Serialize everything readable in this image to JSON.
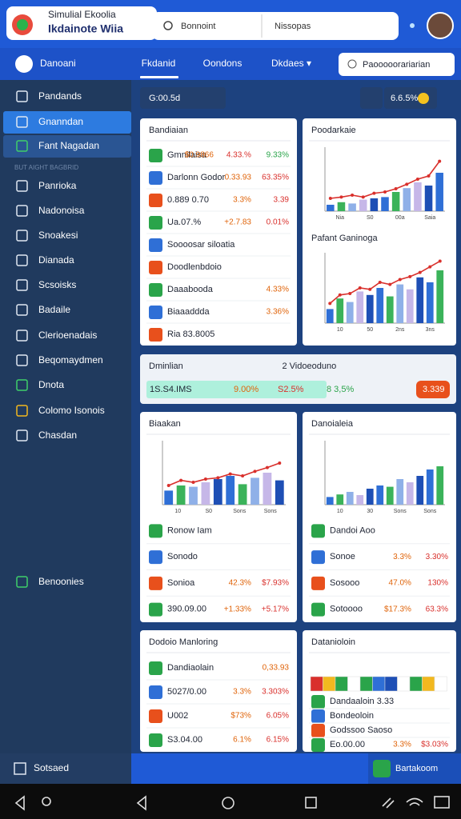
{
  "header": {
    "logo_line1": "Simulial Ekoolia",
    "logo_line2": "Ikdainote Wiia",
    "search": "Bonnoint",
    "search_filter": "Nissopas"
  },
  "nav": {
    "brand": "Danoani",
    "tabs": [
      "Fkdanid",
      "Oondons",
      "Dkdaes ▾"
    ],
    "button": "Paooooorariarian"
  },
  "sidebar": {
    "items": [
      "Pandands",
      "Gnanndan",
      "Fant Nagadan",
      "Panrioka",
      "Nadonoisa",
      "Snoakesi",
      "Dianada",
      "Scsoisks",
      "Badaile",
      "Clerioenadais",
      "Beqomaydmen",
      "Dnota",
      "Colomo Isonois",
      "Chasdan"
    ],
    "section": "BUT AIGHT BAGBRID",
    "footer_item": "Benoonies"
  },
  "toolbar": {
    "left": "G:00.5d",
    "right": "6.6.5%"
  },
  "cards": [
    {
      "title": "Bandiaian",
      "rows": [
        [
          "Gmnilaisa",
          "$0.9866",
          "4.33.%",
          "9.33%"
        ],
        [
          "Darlonn Godor",
          "0.33.93",
          "63.35%"
        ],
        [
          "0.889 0.70",
          "3.3%",
          "3.39"
        ],
        [
          "Ua.07.%",
          "+2.7.83",
          "0.01%"
        ],
        [
          "Soooosar siloatia"
        ],
        [
          "Doodlenbdoio"
        ],
        [
          "Daaabooda",
          "4.33%"
        ],
        [
          "Biaaaddda",
          "3.36%"
        ],
        [
          "Ria 83.8005"
        ]
      ]
    },
    {
      "title": "Poodarkaie",
      "chart": {
        "bars": [
          10,
          14,
          12,
          18,
          20,
          22,
          30,
          36,
          45,
          40,
          60
        ],
        "line": [
          20,
          22,
          25,
          22,
          28,
          30,
          35,
          42,
          50,
          55,
          78
        ],
        "ylim": [
          0,
          100
        ],
        "x_labels": [
          "Nia",
          "S0",
          "00a",
          "Saia"
        ]
      },
      "subtitle": "Pafant Ganinoga",
      "chart2": {
        "bars": [
          20,
          35,
          30,
          45,
          40,
          50,
          38,
          55,
          48,
          65,
          58,
          75
        ],
        "line": [
          28,
          40,
          42,
          50,
          48,
          58,
          55,
          62,
          66,
          72,
          80,
          88
        ],
        "ylim": [
          0,
          100
        ],
        "x_labels": [
          "10",
          "50",
          "2ns",
          "3ns"
        ]
      }
    },
    {
      "title": "Dminlian",
      "title2": "2 Vidoeoduno",
      "rows": [
        [
          "1S.S4.IMS",
          "9.00%",
          "S2.5%",
          "8 3,5%",
          "3.339"
        ]
      ]
    },
    {
      "title": "Biaakan",
      "chart": {
        "bars": [
          22,
          30,
          28,
          35,
          40,
          45,
          32,
          42,
          50,
          38
        ],
        "line": [
          30,
          38,
          35,
          40,
          42,
          48,
          45,
          52,
          58,
          65
        ],
        "ylim": [
          0,
          100
        ],
        "x_labels": [
          "10",
          "S0",
          "Sons",
          "Sons"
        ]
      },
      "rows": [
        [
          "Ronow Iam"
        ],
        [
          "Sonodo"
        ],
        [
          "Sonioa",
          "42.3%",
          "$7.93%"
        ],
        [
          "390.09.00",
          "+1.33%",
          "+5.17%"
        ]
      ]
    },
    {
      "title": "Danoialeia",
      "chart": {
        "bars": [
          12,
          16,
          20,
          15,
          25,
          30,
          28,
          40,
          35,
          45,
          55,
          60
        ],
        "ylim": [
          0,
          100
        ],
        "x_labels": [
          "10",
          "30",
          "Sons",
          "Sons"
        ]
      },
      "rows": [
        [
          "Dandoi Aoo"
        ],
        [
          "Sonoe",
          "3.3%",
          "3.30%"
        ],
        [
          "Sosooo",
          "47.0%",
          "130%"
        ],
        [
          "Sotoooo",
          "$17.3%",
          "63.3%"
        ]
      ]
    },
    {
      "title": "Dodoio Manloring",
      "rows": [
        [
          "Dandiaolain",
          "0,33.93"
        ],
        [
          "5027/0.00",
          "3.3%",
          "3.303%"
        ],
        [
          "U002",
          "$73%",
          "6.05%"
        ],
        [
          "S3.04.00",
          "6.1%",
          "6.15%"
        ]
      ]
    },
    {
      "title": "Datanioloin",
      "rows": [
        [
          "Dandaaloin 3.33"
        ],
        [
          "Bondeoloin"
        ],
        [
          "Godssoo Saoso"
        ],
        [
          "Eo.00.00",
          "3.3%",
          "$3.03%"
        ]
      ]
    }
  ],
  "footer": {
    "left": "Sotsaed",
    "right": "Bartakoom"
  }
}
